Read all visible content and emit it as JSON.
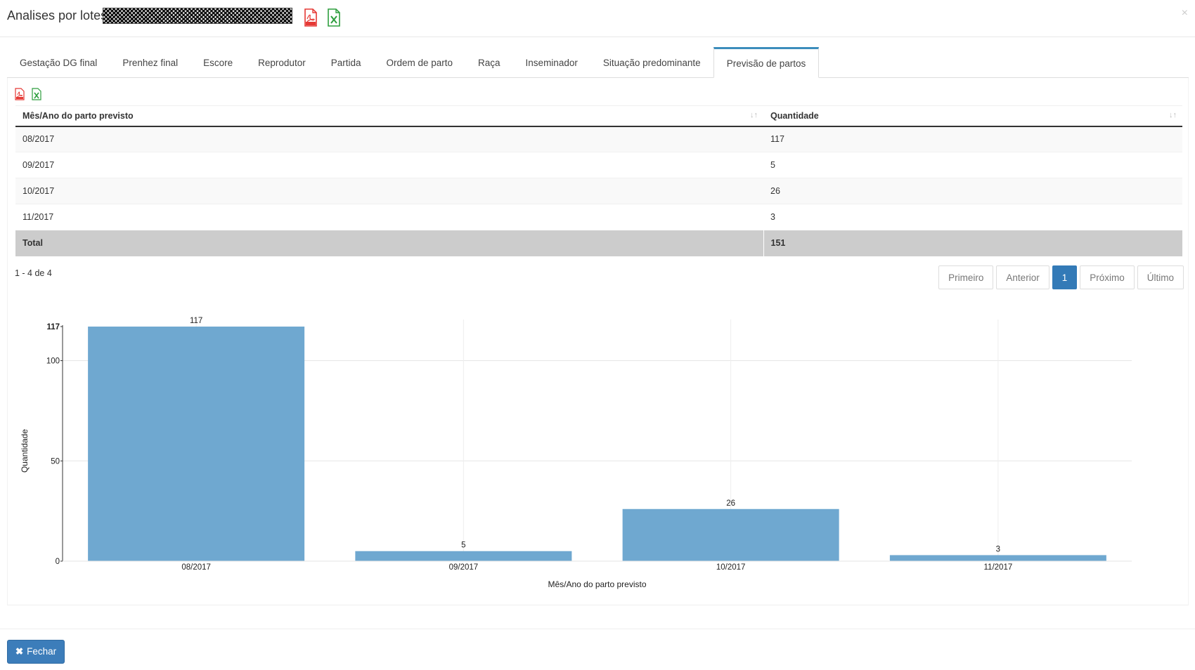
{
  "header": {
    "title": "Analises por lotes",
    "close": "×"
  },
  "icons": {
    "pdf_color": "#e53935",
    "excel_color": "#2e9e3e"
  },
  "tabs": [
    {
      "label": "Gestação DG final"
    },
    {
      "label": "Prenhez final"
    },
    {
      "label": "Escore"
    },
    {
      "label": "Reprodutor"
    },
    {
      "label": "Partida"
    },
    {
      "label": "Ordem de parto"
    },
    {
      "label": "Raça"
    },
    {
      "label": "Inseminador"
    },
    {
      "label": "Situação predominante"
    },
    {
      "label": "Previsão de partos",
      "active": true
    }
  ],
  "table": {
    "columns": [
      "Mês/Ano do parto previsto",
      "Quantidade"
    ],
    "rows": [
      [
        "08/2017",
        "117"
      ],
      [
        "09/2017",
        "5"
      ],
      [
        "10/2017",
        "26"
      ],
      [
        "11/2017",
        "3"
      ]
    ],
    "total": [
      "Total",
      "151"
    ],
    "range_text": "1 - 4 de 4"
  },
  "pager": {
    "first": "Primeiro",
    "prev": "Anterior",
    "current": "1",
    "next": "Próximo",
    "last": "Último"
  },
  "chart_data": {
    "type": "bar",
    "categories": [
      "08/2017",
      "09/2017",
      "10/2017",
      "11/2017"
    ],
    "values": [
      117,
      5,
      26,
      3
    ],
    "xlabel": "Mês/Ano do parto previsto",
    "ylabel": "Quantidade",
    "ylim": [
      0,
      117
    ],
    "yticks": [
      0,
      50,
      100,
      117
    ],
    "bar_color": "#6fa8d0",
    "grid": true
  },
  "footer": {
    "close_label": "Fechar",
    "close_icon": "✖"
  }
}
